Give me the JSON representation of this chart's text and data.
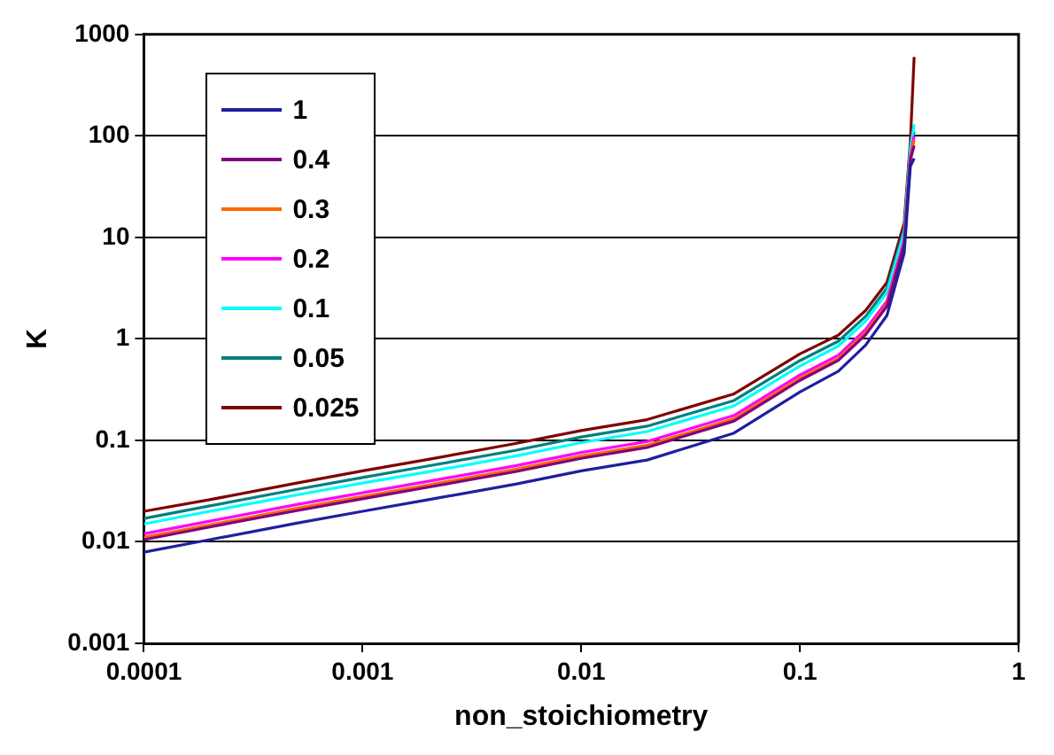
{
  "chart_data": {
    "type": "line",
    "xlabel": "non_stoichiometry",
    "ylabel": "K",
    "log": "xy",
    "grid": "y",
    "legend": "top left",
    "marker": "none",
    "line_style": "solid",
    "x": [
      0.0001,
      0.0002,
      0.0005,
      0.001,
      0.002,
      0.005,
      0.01,
      0.02,
      0.05,
      0.1,
      0.15,
      0.2,
      0.25,
      0.3,
      0.32,
      0.333
    ],
    "xlim": [
      0.0001,
      1
    ],
    "xticks": [
      0.0001,
      0.001,
      0.01,
      0.1,
      1
    ],
    "ylim": [
      0.001,
      1000
    ],
    "yticks": [
      0.001,
      0.01,
      0.1,
      1,
      10,
      100,
      1000
    ],
    "series": [
      {
        "name": "1",
        "color": "#1f1f9f",
        "values": [
          0.0079,
          0.0105,
          0.0153,
          0.02,
          0.026,
          0.037,
          0.05,
          0.064,
          0.118,
          0.3,
          0.48,
          0.87,
          1.7,
          7,
          50,
          60
        ]
      },
      {
        "name": "0.4",
        "color": "#800080",
        "values": [
          0.0105,
          0.014,
          0.0203,
          0.0266,
          0.0346,
          0.0492,
          0.0665,
          0.0851,
          0.155,
          0.39,
          0.615,
          1.1,
          2.1,
          8.5,
          58,
          80
        ]
      },
      {
        "name": "0.3",
        "color": "#ff6600",
        "values": [
          0.0111,
          0.0147,
          0.0214,
          0.028,
          0.0364,
          0.0518,
          0.07,
          0.0896,
          0.163,
          0.41,
          0.64,
          1.15,
          2.2,
          8.8,
          60,
          90
        ]
      },
      {
        "name": "0.2",
        "color": "#ff00ff",
        "values": [
          0.012,
          0.016,
          0.0233,
          0.0304,
          0.0395,
          0.0562,
          0.076,
          0.0973,
          0.176,
          0.44,
          0.69,
          1.24,
          2.36,
          9.4,
          63,
          100
        ]
      },
      {
        "name": "0.1",
        "color": "#00ffff",
        "values": [
          0.015,
          0.02,
          0.029,
          0.038,
          0.049,
          0.07,
          0.095,
          0.122,
          0.219,
          0.54,
          0.85,
          1.5,
          2.86,
          11.1,
          73,
          130
        ]
      },
      {
        "name": "0.05",
        "color": "#008080",
        "values": [
          0.017,
          0.0226,
          0.0329,
          0.043,
          0.056,
          0.0796,
          0.108,
          0.138,
          0.247,
          0.61,
          0.95,
          1.67,
          3.16,
          12.2,
          79,
          110
        ]
      },
      {
        "name": "0.025",
        "color": "#800000",
        "values": [
          0.02,
          0.026,
          0.038,
          0.05,
          0.065,
          0.093,
          0.125,
          0.16,
          0.287,
          0.71,
          1.09,
          1.91,
          3.6,
          13.9,
          88,
          600
        ]
      }
    ]
  }
}
